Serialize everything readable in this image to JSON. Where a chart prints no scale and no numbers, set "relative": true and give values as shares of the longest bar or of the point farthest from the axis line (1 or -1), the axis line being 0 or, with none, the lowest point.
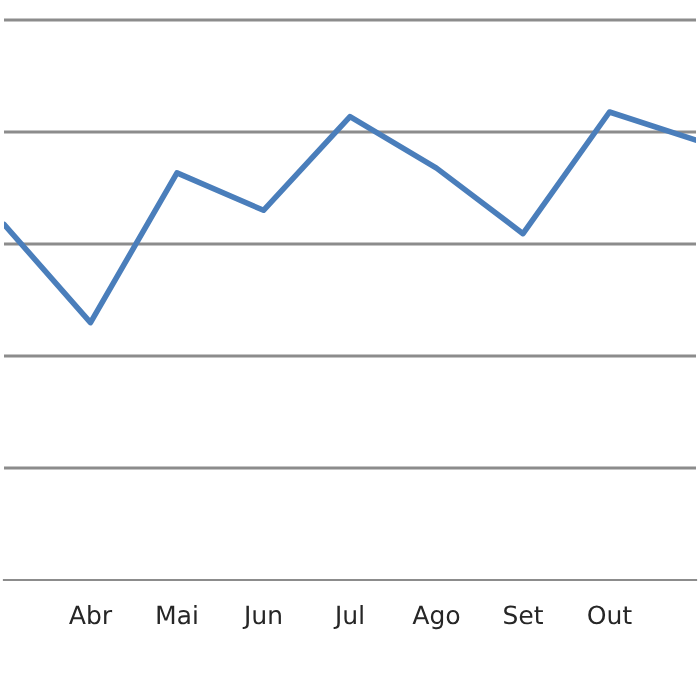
{
  "chart_data": {
    "type": "line",
    "relative": true,
    "grid": "y",
    "legend": false,
    "categories": [
      null,
      "Abr",
      "Mai",
      "Jun",
      "Jul",
      "Ago",
      "Set",
      "Out",
      null
    ],
    "series": [
      {
        "color": "#4a7ebb",
        "values": [
          0.76,
          0.55,
          0.87,
          0.79,
          0.99,
          0.88,
          0.74,
          1.0,
          0.94
        ]
      }
    ]
  }
}
